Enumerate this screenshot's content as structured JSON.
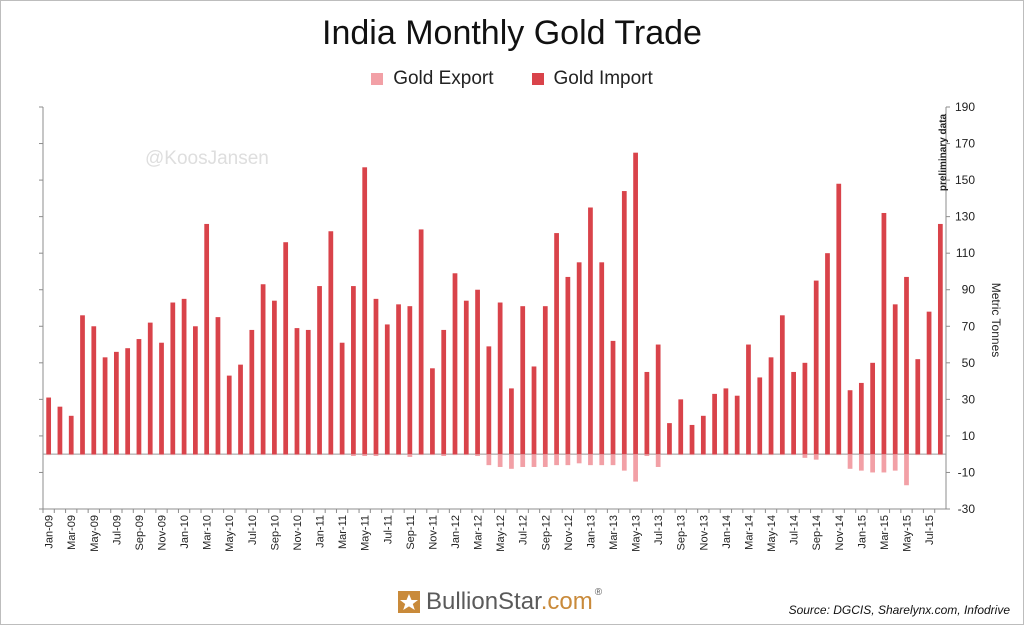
{
  "chart_data": {
    "type": "bar",
    "title": "India Monthly Gold Trade",
    "ylabel": "Metric Tonnes",
    "ylim": [
      -30,
      190
    ],
    "yticks": [
      -30,
      -10,
      10,
      30,
      50,
      70,
      90,
      110,
      130,
      150,
      170,
      190
    ],
    "grid": false,
    "legend_position": "top-center",
    "categories": [
      "Jan-09",
      "Feb-09",
      "Mar-09",
      "Apr-09",
      "May-09",
      "Jun-09",
      "Jul-09",
      "Aug-09",
      "Sep-09",
      "Oct-09",
      "Nov-09",
      "Dec-09",
      "Jan-10",
      "Feb-10",
      "Mar-10",
      "Apr-10",
      "May-10",
      "Jun-10",
      "Jul-10",
      "Aug-10",
      "Sep-10",
      "Oct-10",
      "Nov-10",
      "Dec-10",
      "Jan-11",
      "Feb-11",
      "Mar-11",
      "Apr-11",
      "May-11",
      "Jun-11",
      "Jul-11",
      "Aug-11",
      "Sep-11",
      "Oct-11",
      "Nov-11",
      "Dec-11",
      "Jan-12",
      "Feb-12",
      "Mar-12",
      "Apr-12",
      "May-12",
      "Jun-12",
      "Jul-12",
      "Aug-12",
      "Sep-12",
      "Oct-12",
      "Nov-12",
      "Dec-12",
      "Jan-13",
      "Feb-13",
      "Mar-13",
      "Apr-13",
      "May-13",
      "Jun-13",
      "Jul-13",
      "Aug-13",
      "Sep-13",
      "Oct-13",
      "Nov-13",
      "Dec-13",
      "Jan-14",
      "Feb-14",
      "Mar-14",
      "Apr-14",
      "May-14",
      "Jun-14",
      "Jul-14",
      "Aug-14",
      "Sep-14",
      "Oct-14",
      "Nov-14",
      "Dec-14",
      "Jan-15",
      "Feb-15",
      "Mar-15",
      "Apr-15",
      "May-15",
      "Jun-15",
      "Jul-15",
      "Aug-15"
    ],
    "x_tick_labels": [
      "Jan-09",
      "Mar-09",
      "May-09",
      "Jul-09",
      "Sep-09",
      "Nov-09",
      "Jan-10",
      "Mar-10",
      "May-10",
      "Jul-10",
      "Sep-10",
      "Nov-10",
      "Jan-11",
      "Mar-11",
      "May-11",
      "Jul-11",
      "Sep-11",
      "Nov-11",
      "Jan-12",
      "Mar-12",
      "May-12",
      "Jul-12",
      "Sep-12",
      "Nov-12",
      "Jan-13",
      "Mar-13",
      "May-13",
      "Jul-13",
      "Sep-13",
      "Nov-13",
      "Jan-14",
      "Mar-14",
      "May-14",
      "Jul-14",
      "Sep-14",
      "Nov-14",
      "Jan-15",
      "Mar-15",
      "May-15",
      "Jul-15"
    ],
    "series": [
      {
        "name": "Gold Export",
        "color": "#f2a0a6",
        "values": [
          -0.5,
          -0.5,
          -0.5,
          -0.5,
          -0.5,
          -0.5,
          -0.5,
          -0.5,
          -0.5,
          -0.5,
          -0.5,
          -0.5,
          -0.5,
          -0.5,
          -0.5,
          -0.5,
          -0.5,
          -0.5,
          -0.5,
          -0.5,
          -0.5,
          -0.5,
          -0.5,
          -0.5,
          -0.5,
          -0.5,
          -0.5,
          -1,
          -1,
          -1,
          -0.5,
          -0.5,
          -1.5,
          -0.5,
          -0.5,
          -1,
          -0.5,
          -0.5,
          -1,
          -6,
          -7,
          -8,
          -7,
          -7,
          -7,
          -6,
          -6,
          -5,
          -6,
          -6,
          -6,
          -9,
          -15,
          -1,
          -7,
          -0.5,
          -0.5,
          -0.5,
          -0.5,
          -0.5,
          -0.5,
          -0.5,
          -0.5,
          -0.5,
          -0.5,
          -0.5,
          -0.5,
          -2,
          -3,
          -0.5,
          -0.5,
          -8,
          -9,
          -10,
          -10,
          -9,
          -17,
          -0.5,
          -0.5,
          -0.5
        ]
      },
      {
        "name": "Gold Import",
        "color": "#d9434a",
        "values": [
          31,
          26,
          21,
          76,
          70,
          53,
          56,
          58,
          63,
          72,
          61,
          83,
          85,
          70,
          126,
          75,
          43,
          49,
          68,
          93,
          84,
          116,
          69,
          68,
          92,
          122,
          61,
          92,
          157,
          85,
          71,
          82,
          81,
          123,
          47,
          68,
          99,
          84,
          90,
          59,
          83,
          36,
          81,
          48,
          81,
          121,
          97,
          105,
          135,
          105,
          62,
          144,
          165,
          45,
          60,
          17,
          30,
          16,
          21,
          33,
          36,
          32,
          60,
          42,
          53,
          76,
          45,
          50,
          95,
          110,
          148,
          35,
          39,
          50,
          132,
          82,
          97,
          52,
          78,
          126
        ]
      }
    ],
    "annotations": [
      "@KoosJansen",
      "preliminary data"
    ],
    "source": "Source: DGCIS, Sharelynx.com, Infodrive",
    "brand": {
      "name": "BullionStar",
      "suffix": ".com",
      "reg": "®"
    }
  }
}
